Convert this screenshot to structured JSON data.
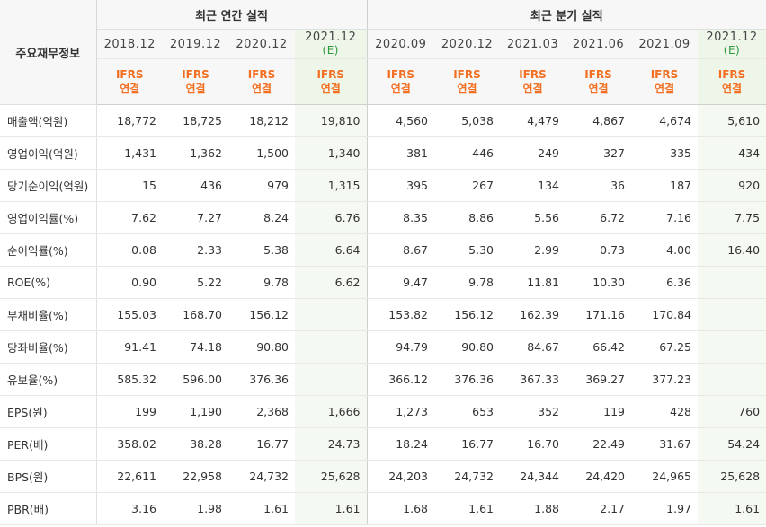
{
  "header": {
    "label": "주요재무정보",
    "annual_title": "최근 연간 실적",
    "quarterly_title": "최근 분기 실적",
    "annual_periods": [
      {
        "date": "2018.12",
        "est": ""
      },
      {
        "date": "2019.12",
        "est": ""
      },
      {
        "date": "2020.12",
        "est": ""
      },
      {
        "date": "2021.12",
        "est": "(E)"
      }
    ],
    "quarterly_periods": [
      {
        "date": "2020.09",
        "est": ""
      },
      {
        "date": "2020.12",
        "est": ""
      },
      {
        "date": "2021.03",
        "est": ""
      },
      {
        "date": "2021.06",
        "est": ""
      },
      {
        "date": "2021.09",
        "est": ""
      },
      {
        "date": "2021.12",
        "est": "(E)"
      }
    ],
    "standard_line1": "IFRS",
    "standard_line2": "연결"
  },
  "rows": [
    {
      "name": "매출액(억원)",
      "values": [
        "18,772",
        "18,725",
        "18,212",
        "19,810",
        "4,560",
        "5,038",
        "4,479",
        "4,867",
        "4,674",
        "5,610"
      ]
    },
    {
      "name": "영업이익(억원)",
      "values": [
        "1,431",
        "1,362",
        "1,500",
        "1,340",
        "381",
        "446",
        "249",
        "327",
        "335",
        "434"
      ]
    },
    {
      "name": "당기순이익(억원)",
      "values": [
        "15",
        "436",
        "979",
        "1,315",
        "395",
        "267",
        "134",
        "36",
        "187",
        "920"
      ]
    },
    {
      "name": "영업이익률(%)",
      "values": [
        "7.62",
        "7.27",
        "8.24",
        "6.76",
        "8.35",
        "8.86",
        "5.56",
        "6.72",
        "7.16",
        "7.75"
      ]
    },
    {
      "name": "순이익률(%)",
      "values": [
        "0.08",
        "2.33",
        "5.38",
        "6.64",
        "8.67",
        "5.30",
        "2.99",
        "0.73",
        "4.00",
        "16.40"
      ]
    },
    {
      "name": "ROE(%)",
      "values": [
        "0.90",
        "5.22",
        "9.78",
        "6.62",
        "9.47",
        "9.78",
        "11.81",
        "10.30",
        "6.36",
        ""
      ]
    },
    {
      "name": "부채비율(%)",
      "values": [
        "155.03",
        "168.70",
        "156.12",
        "",
        "153.82",
        "156.12",
        "162.39",
        "171.16",
        "170.84",
        ""
      ]
    },
    {
      "name": "당좌비율(%)",
      "values": [
        "91.41",
        "74.18",
        "90.80",
        "",
        "94.79",
        "90.80",
        "84.67",
        "66.42",
        "67.25",
        ""
      ]
    },
    {
      "name": "유보율(%)",
      "values": [
        "585.32",
        "596.00",
        "376.36",
        "",
        "366.12",
        "376.36",
        "367.33",
        "369.27",
        "377.23",
        ""
      ]
    },
    {
      "name": "EPS(원)",
      "values": [
        "199",
        "1,190",
        "2,368",
        "1,666",
        "1,273",
        "653",
        "352",
        "119",
        "428",
        "760"
      ]
    },
    {
      "name": "PER(배)",
      "values": [
        "358.02",
        "38.28",
        "16.77",
        "24.73",
        "18.24",
        "16.77",
        "16.70",
        "22.49",
        "31.67",
        "54.24"
      ]
    },
    {
      "name": "BPS(원)",
      "values": [
        "22,611",
        "22,958",
        "24,732",
        "25,628",
        "24,203",
        "24,732",
        "24,344",
        "24,420",
        "24,965",
        "25,628"
      ]
    },
    {
      "name": "PBR(배)",
      "values": [
        "3.16",
        "1.98",
        "1.61",
        "1.61",
        "1.68",
        "1.61",
        "1.88",
        "2.17",
        "1.97",
        "1.61"
      ]
    }
  ]
}
